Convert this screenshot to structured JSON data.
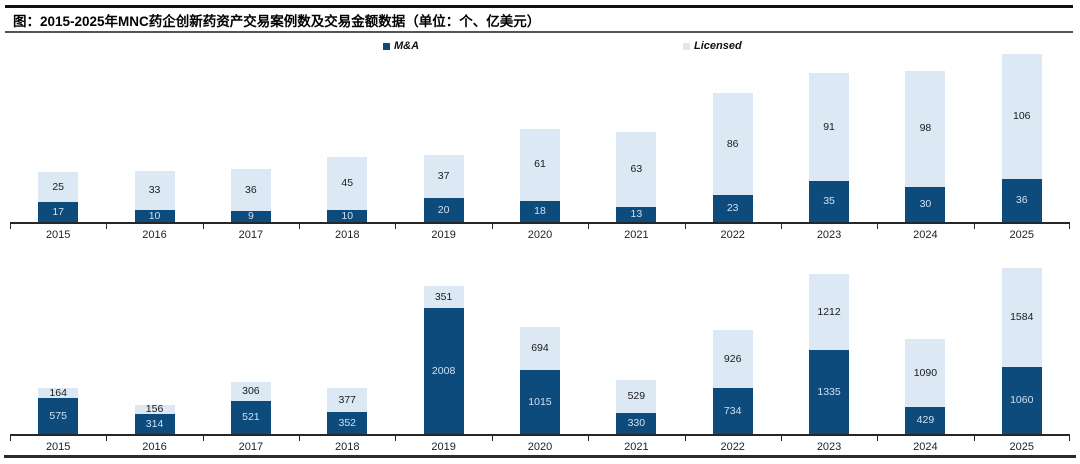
{
  "header": {
    "title": "图：2015-2025年MNC药企创新药资产交易案例数及交易金额数据（单位：个、亿美元）"
  },
  "colors": {
    "ma": "#0E4B7D",
    "licensed": "#DCE9F5",
    "ma_value_text": "#CFE0EF",
    "licensed_value_text": "#1A1A1A",
    "axis": "#262626"
  },
  "chart_data": [
    {
      "type": "bar",
      "stacked": true,
      "legend_position": "top",
      "value_labels": true,
      "categories": [
        "2015",
        "2016",
        "2017",
        "2018",
        "2019",
        "2020",
        "2021",
        "2022",
        "2023",
        "2024",
        "2025"
      ],
      "series": [
        {
          "name": "M&A",
          "values": [
            17,
            10,
            9,
            10,
            20,
            18,
            13,
            23,
            35,
            30,
            36
          ]
        },
        {
          "name": "Licensed",
          "values": [
            25,
            33,
            36,
            45,
            37,
            61,
            63,
            86,
            91,
            98,
            106
          ]
        }
      ],
      "ylim": [
        0,
        142
      ]
    },
    {
      "type": "bar",
      "stacked": true,
      "legend_position": "none",
      "value_labels": true,
      "categories": [
        "2015",
        "2016",
        "2017",
        "2018",
        "2019",
        "2020",
        "2021",
        "2022",
        "2023",
        "2024",
        "2025"
      ],
      "series": [
        {
          "name": "M&A",
          "values": [
            575,
            314,
            521,
            352,
            2008,
            1015,
            330,
            734,
            1335,
            429,
            1060
          ]
        },
        {
          "name": "Licensed",
          "values": [
            164,
            156,
            306,
            377,
            351,
            694,
            529,
            926,
            1212,
            1090,
            1584
          ]
        }
      ],
      "ylim": [
        0,
        2644
      ]
    }
  ]
}
